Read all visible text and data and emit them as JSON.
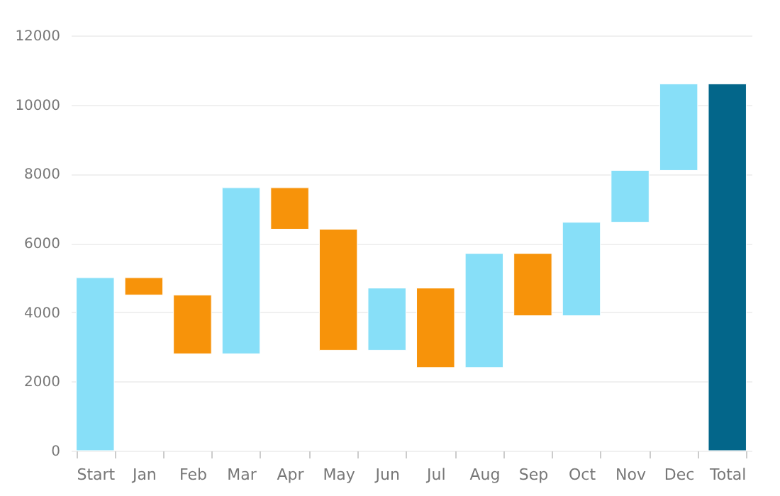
{
  "chart_data": {
    "type": "bar",
    "categories": [
      "Start",
      "Jan",
      "Feb",
      "Mar",
      "Apr",
      "May",
      "Jun",
      "Jul",
      "Aug",
      "Sep",
      "Oct",
      "Nov",
      "Dec",
      "Total"
    ],
    "base": [
      0,
      5000,
      4500,
      2800,
      7600,
      6400,
      2900,
      4700,
      2400,
      5700,
      3900,
      6600,
      8100,
      0
    ],
    "values": [
      5000,
      -500,
      -1700,
      4800,
      -1200,
      -3500,
      1800,
      -2300,
      3300,
      -1800,
      2700,
      1500,
      2500,
      10600
    ],
    "colors": [
      "#87dff8",
      "#f7930a",
      "#f7930a",
      "#87dff8",
      "#f7930a",
      "#f7930a",
      "#87dff8",
      "#f7930a",
      "#87dff8",
      "#f7930a",
      "#87dff8",
      "#87dff8",
      "#87dff8",
      "#03668a"
    ],
    "ylim": [
      0,
      12000
    ],
    "yticks": [
      0,
      2000,
      4000,
      6000,
      8000,
      10000,
      12000
    ],
    "grid": "y",
    "legend": false
  }
}
